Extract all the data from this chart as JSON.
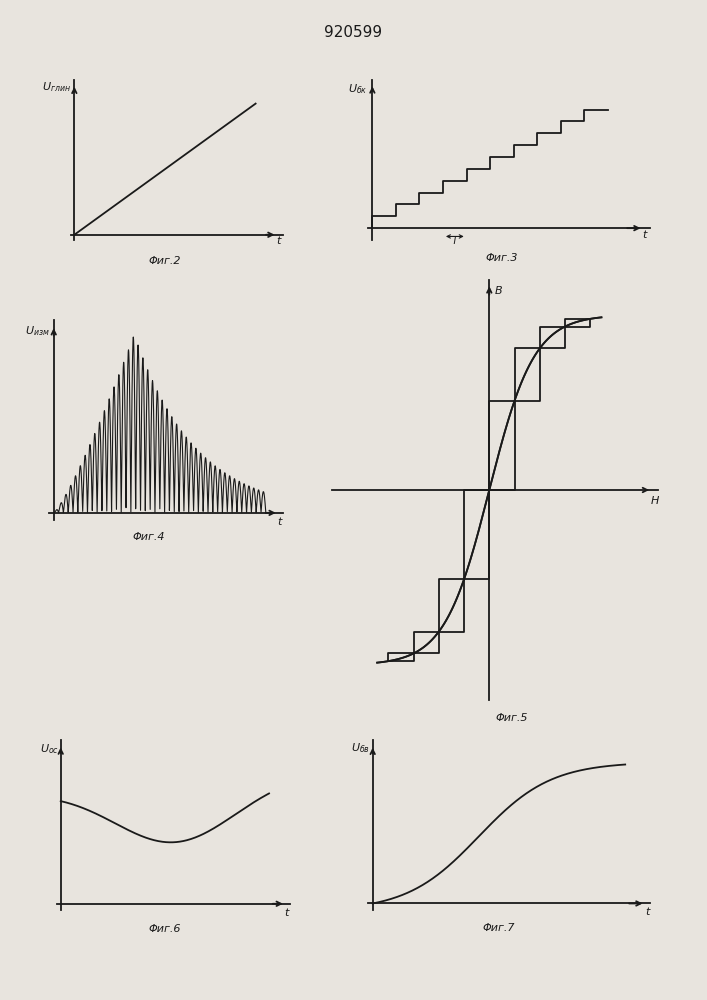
{
  "title": "920599",
  "title_fontsize": 11,
  "background_color": "#e8e4de",
  "line_color": "#1a1a1a",
  "fig2_label": "Φиг.2",
  "fig3_label": "Φиг.3",
  "fig4_label": "Φиг.4",
  "fig5_label": "Φиг.5",
  "fig6_label": "Φиг.6",
  "fig7_label": "Φиг.7",
  "lw": 1.3,
  "arrow_lw": 1.0,
  "fs_label": 8,
  "fs_caption": 8,
  "fs_title": 11
}
